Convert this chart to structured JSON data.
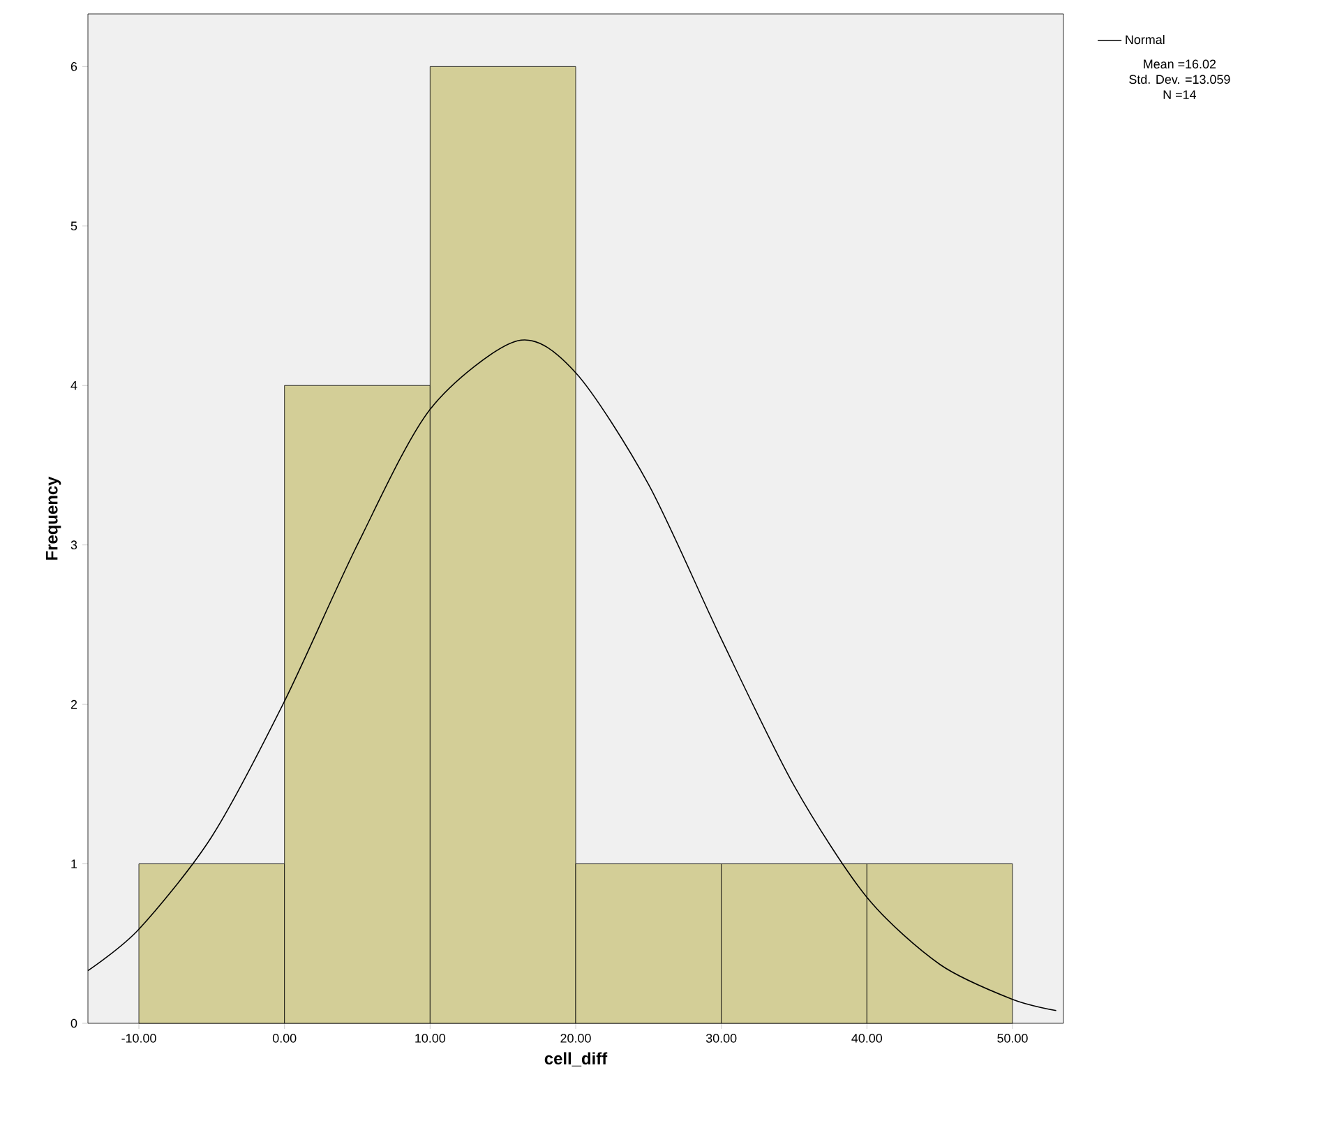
{
  "chart_data": {
    "type": "histogram",
    "xlabel": "cell_diff",
    "ylabel": "Frequency",
    "bins": [
      -10,
      0,
      10,
      20,
      30,
      40,
      50
    ],
    "values": [
      1,
      4,
      6,
      1,
      1,
      1
    ],
    "color": "#d3ce97",
    "series": [
      {
        "name": "Normal",
        "type": "line",
        "color": "#000000",
        "x": [
          -13.5,
          -10,
          -5,
          0,
          5,
          10,
          16,
          20,
          25,
          30,
          35,
          40,
          45,
          50,
          53
        ],
        "values": [
          0.33,
          0.59,
          1.17,
          2.02,
          3.0,
          3.85,
          4.28,
          4.08,
          3.38,
          2.41,
          1.49,
          0.79,
          0.37,
          0.15,
          0.08
        ]
      }
    ],
    "xlim": [
      -13.5,
      53.5
    ],
    "ylim": [
      0,
      6.33
    ],
    "xticks": [
      {
        "value": -10,
        "label": "-10.00"
      },
      {
        "value": 0,
        "label": "0.00"
      },
      {
        "value": 10,
        "label": "10.00"
      },
      {
        "value": 20,
        "label": "20.00"
      },
      {
        "value": 30,
        "label": "30.00"
      },
      {
        "value": 40,
        "label": "40.00"
      },
      {
        "value": 50,
        "label": "50.00"
      }
    ],
    "yticks": [
      0,
      1,
      2,
      3,
      4,
      5,
      6
    ],
    "legend": "top right",
    "annotations": [
      "Mean =16.02",
      "Std. Dev. =13.059",
      "N =14"
    ]
  }
}
